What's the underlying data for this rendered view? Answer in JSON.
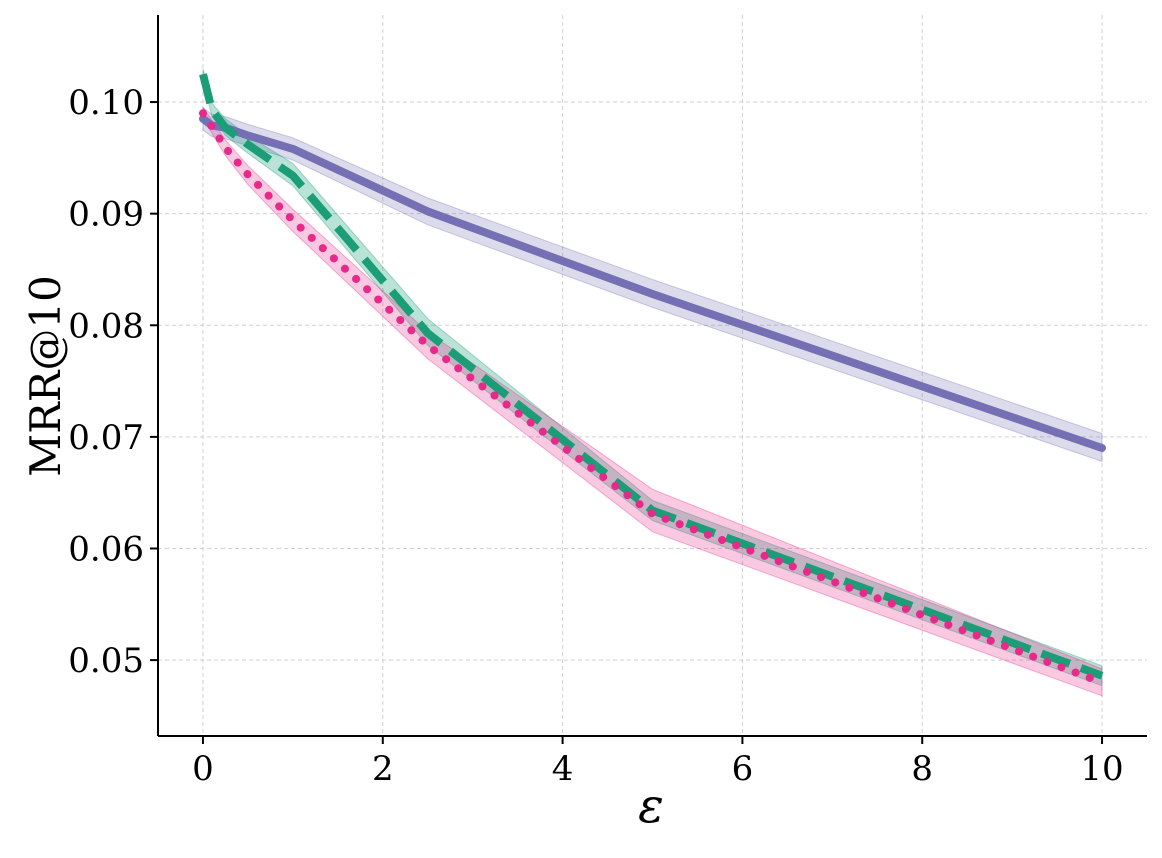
{
  "chart_data": {
    "type": "line",
    "xlabel": "ε",
    "ylabel": "MRR@10",
    "xlim": [
      -0.5,
      10.5
    ],
    "ylim": [
      0.0432,
      0.1078
    ],
    "xticks": [
      0,
      2,
      4,
      6,
      8,
      10
    ],
    "xtick_labels": [
      "0",
      "2",
      "4",
      "6",
      "8",
      "10"
    ],
    "yticks": [
      0.05,
      0.06,
      0.07,
      0.08,
      0.09,
      0.1
    ],
    "ytick_labels": [
      "0.05",
      "0.06",
      "0.07",
      "0.08",
      "0.09",
      "0.10"
    ],
    "grid": true,
    "legend": "none",
    "series": [
      {
        "color": "#7570b3",
        "style": "solid",
        "band_alpha": 0.25,
        "x": [
          0,
          0.1,
          0.25,
          0.5,
          1,
          2.5,
          5,
          10
        ],
        "y": [
          0.0985,
          0.0979,
          0.0977,
          0.097,
          0.0958,
          0.0902,
          0.0828,
          0.069
        ],
        "lower": [
          0.0975,
          0.0969,
          0.0967,
          0.0961,
          0.0948,
          0.089,
          0.0816,
          0.0678
        ],
        "upper": [
          0.0995,
          0.0989,
          0.0987,
          0.098,
          0.0968,
          0.0914,
          0.0841,
          0.0703
        ]
      },
      {
        "color": "#1b9e77",
        "style": "dashed",
        "band_alpha": 0.3,
        "x": [
          0,
          0.1,
          0.25,
          0.5,
          1,
          2.5,
          5,
          10
        ],
        "y": [
          0.1025,
          0.0993,
          0.0977,
          0.0962,
          0.0934,
          0.0793,
          0.0634,
          0.0486
        ],
        "lower": [
          0.102,
          0.0987,
          0.097,
          0.0954,
          0.0925,
          0.0782,
          0.0625,
          0.0477
        ],
        "upper": [
          0.103,
          0.0999,
          0.0985,
          0.097,
          0.0945,
          0.0806,
          0.0643,
          0.0495
        ]
      },
      {
        "color": "#e7298a",
        "style": "dotted",
        "band_alpha": 0.25,
        "x": [
          0,
          0.1,
          0.25,
          0.5,
          1,
          2.5,
          5,
          10
        ],
        "y": [
          0.099,
          0.0978,
          0.0959,
          0.0935,
          0.0894,
          0.0782,
          0.0631,
          0.048
        ],
        "lower": [
          0.0985,
          0.0972,
          0.0952,
          0.0926,
          0.0884,
          0.077,
          0.0615,
          0.0468
        ],
        "upper": [
          0.0995,
          0.0984,
          0.0966,
          0.0943,
          0.0904,
          0.0794,
          0.0653,
          0.0492
        ]
      }
    ]
  }
}
